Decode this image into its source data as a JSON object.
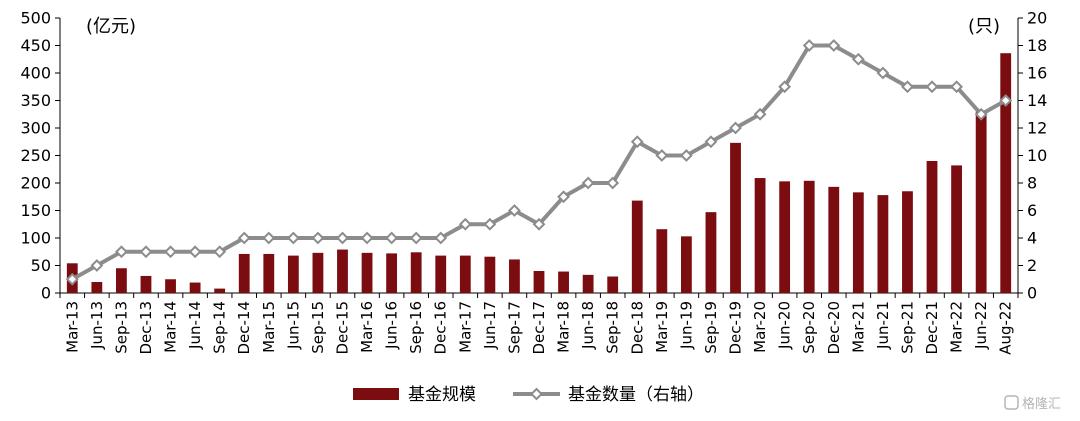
{
  "chart_data": {
    "type": "bar+line",
    "categories": [
      "Mar-13",
      "Jun-13",
      "Sep-13",
      "Dec-13",
      "Mar-14",
      "Jun-14",
      "Sep-14",
      "Dec-14",
      "Mar-15",
      "Jun-15",
      "Sep-15",
      "Dec-15",
      "Mar-16",
      "Jun-16",
      "Sep-16",
      "Dec-16",
      "Mar-17",
      "Jun-17",
      "Sep-17",
      "Dec-17",
      "Mar-18",
      "Jun-18",
      "Sep-18",
      "Dec-18",
      "Mar-19",
      "Jun-19",
      "Sep-19",
      "Dec-19",
      "Mar-20",
      "Jun-20",
      "Sep-20",
      "Dec-20",
      "Mar-21",
      "Jun-21",
      "Sep-21",
      "Dec-21",
      "Mar-22",
      "Jun-22",
      "Aug-22"
    ],
    "series": [
      {
        "name": "基金规模",
        "kind": "bar",
        "axis": "left",
        "color": "#7b0c10",
        "values": [
          54,
          20,
          45,
          31,
          25,
          19,
          8,
          71,
          71,
          68,
          73,
          79,
          73,
          72,
          74,
          68,
          68,
          66,
          61,
          40,
          39,
          33,
          30,
          168,
          116,
          103,
          147,
          273,
          209,
          203,
          204,
          193,
          183,
          178,
          185,
          240,
          232,
          330,
          436
        ]
      },
      {
        "name": "基金数量（右轴）",
        "kind": "line",
        "axis": "right",
        "color": "#8c8c8c",
        "values": [
          1,
          2,
          3,
          3,
          3,
          3,
          3,
          4,
          4,
          4,
          4,
          4,
          4,
          4,
          4,
          4,
          5,
          5,
          6,
          5,
          7,
          8,
          8,
          11,
          10,
          10,
          11,
          12,
          13,
          15,
          18,
          18,
          17,
          16,
          15,
          15,
          15,
          13,
          14
        ]
      }
    ],
    "ylim_left": [
      0,
      500
    ],
    "yticks_left": [
      0,
      50,
      100,
      150,
      200,
      250,
      300,
      350,
      400,
      450,
      500
    ],
    "ylim_right": [
      0,
      20
    ],
    "yticks_right": [
      0,
      2,
      4,
      6,
      8,
      10,
      12,
      14,
      16,
      18,
      20
    ],
    "ylabel_left": "(亿元)",
    "ylabel_right": "(只)",
    "legend_position": "bottom-center",
    "grid": false
  },
  "watermark": "格隆汇"
}
